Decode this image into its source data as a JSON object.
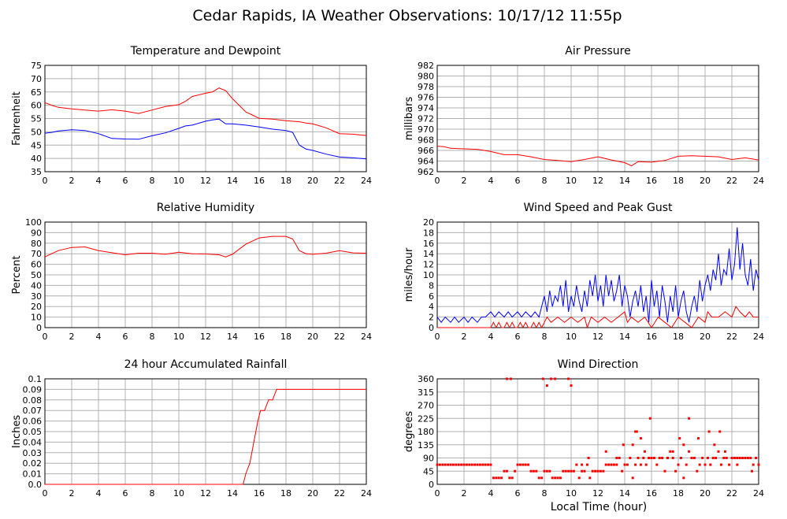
{
  "page_title": "Cedar Rapids, IA Weather Observations: 10/17/12 11:55p",
  "x_axis_label": "Local Time (hour)",
  "colors": {
    "red": "#ff0000",
    "blue": "#0000ff",
    "grid": "#b0b0b0",
    "frame": "#000000"
  },
  "chart_data": [
    {
      "id": "temp",
      "type": "line",
      "title": "Temperature and Dewpoint",
      "ylabel": "Fahrenheit",
      "xlim": [
        0,
        24
      ],
      "ylim": [
        35,
        75
      ],
      "xticks": [
        0,
        2,
        4,
        6,
        8,
        10,
        12,
        14,
        16,
        18,
        20,
        22,
        24
      ],
      "yticks": [
        35,
        40,
        45,
        50,
        55,
        60,
        65,
        70,
        75
      ],
      "grid": true,
      "series": [
        {
          "color": "#ff0000",
          "x": [
            0,
            0.5,
            1,
            2,
            3,
            4,
            5,
            6,
            7,
            8,
            9,
            10,
            10.5,
            11,
            12,
            12.5,
            13,
            13.5,
            14,
            15,
            16,
            17,
            18,
            19,
            19.5,
            20,
            21,
            22,
            23,
            24
          ],
          "y": [
            61,
            60,
            59.2,
            58.6,
            58.2,
            57.8,
            58.3,
            57.8,
            56.9,
            58.2,
            59.5,
            60.2,
            61.5,
            63.3,
            64.5,
            65,
            66.5,
            65.5,
            62.5,
            57.5,
            55.1,
            54.8,
            54.2,
            53.8,
            53.3,
            53,
            51.5,
            49.3,
            49.1,
            48.6
          ]
        },
        {
          "color": "#0000ff",
          "x": [
            0,
            0.5,
            1,
            2,
            3,
            4,
            5,
            6,
            7,
            8,
            9,
            10,
            10.5,
            11,
            12,
            12.5,
            13,
            13.5,
            14,
            15,
            16,
            17,
            18,
            18.5,
            19,
            19.5,
            20,
            21,
            22,
            23,
            24
          ],
          "y": [
            49.5,
            49.8,
            50.3,
            50.8,
            50.5,
            49.3,
            47.5,
            47.3,
            47.2,
            48.5,
            49.6,
            51.3,
            52.2,
            52.5,
            54,
            54.5,
            54.8,
            53,
            53,
            52.5,
            51.8,
            51,
            50.5,
            49.8,
            45,
            43.5,
            43,
            41.6,
            40.5,
            40.2,
            39.8
          ]
        }
      ]
    },
    {
      "id": "pres",
      "type": "line",
      "title": "Air Pressure",
      "ylabel": "millibars",
      "xlim": [
        0,
        24
      ],
      "ylim": [
        962,
        982
      ],
      "xticks": [
        0,
        2,
        4,
        6,
        8,
        10,
        12,
        14,
        16,
        18,
        20,
        22,
        24
      ],
      "yticks": [
        962,
        964,
        966,
        968,
        970,
        972,
        974,
        976,
        978,
        980,
        982
      ],
      "grid": true,
      "series": [
        {
          "color": "#ff0000",
          "x": [
            0,
            0.5,
            1,
            2,
            3,
            4,
            5,
            6,
            7,
            8,
            9,
            10,
            11,
            12,
            13,
            14,
            14.5,
            15,
            16,
            17,
            18,
            19,
            20,
            21,
            22,
            23,
            24
          ],
          "y": [
            966.8,
            966.7,
            966.4,
            966.3,
            966.2,
            965.8,
            965.2,
            965.2,
            964.8,
            964.3,
            964.1,
            963.9,
            964.3,
            964.8,
            964.2,
            963.7,
            963.1,
            963.9,
            963.8,
            964.1,
            964.9,
            965,
            964.9,
            964.8,
            964.3,
            964.6,
            964.2
          ]
        }
      ]
    },
    {
      "id": "rh",
      "type": "line",
      "title": "Relative Humidity",
      "ylabel": "Percent",
      "xlim": [
        0,
        24
      ],
      "ylim": [
        0,
        100
      ],
      "xticks": [
        0,
        2,
        4,
        6,
        8,
        10,
        12,
        14,
        16,
        18,
        20,
        22,
        24
      ],
      "yticks": [
        0,
        10,
        20,
        30,
        40,
        50,
        60,
        70,
        80,
        90,
        100
      ],
      "grid": true,
      "series": [
        {
          "color": "#ff0000",
          "x": [
            0,
            0.5,
            1,
            2,
            3,
            4,
            5,
            6,
            7,
            8,
            9,
            10,
            11,
            12,
            13,
            13.5,
            14,
            15,
            15.5,
            16,
            17,
            18,
            18.5,
            19,
            19.5,
            20,
            21,
            22,
            23,
            24
          ],
          "y": [
            67,
            70,
            73,
            76,
            76.5,
            73,
            71,
            69,
            70.5,
            70.5,
            69.5,
            71.5,
            70,
            69.8,
            69,
            67,
            69.5,
            79,
            82,
            85,
            86.5,
            86.5,
            84,
            73,
            70,
            69.5,
            70.5,
            73,
            70.8,
            70.5
          ]
        }
      ]
    },
    {
      "id": "wind",
      "type": "line",
      "title": "Wind Speed and Peak Gust",
      "ylabel": "miles/hour",
      "xlim": [
        0,
        24
      ],
      "ylim": [
        0,
        20
      ],
      "xticks": [
        0,
        2,
        4,
        6,
        8,
        10,
        12,
        14,
        16,
        18,
        20,
        22,
        24
      ],
      "yticks": [
        0,
        2,
        4,
        6,
        8,
        10,
        12,
        14,
        16,
        18,
        20
      ],
      "grid": true,
      "series": [
        {
          "color": "#0000ff",
          "x": [
            0,
            0.3,
            0.6,
            1,
            1.3,
            1.6,
            2,
            2.3,
            2.6,
            3,
            3.3,
            3.6,
            4,
            4.3,
            4.6,
            5,
            5.3,
            5.6,
            6,
            6.3,
            6.6,
            7,
            7.3,
            7.6,
            8,
            8.2,
            8.4,
            8.6,
            8.8,
            9,
            9.2,
            9.4,
            9.6,
            9.8,
            10,
            10.2,
            10.4,
            10.6,
            10.8,
            11,
            11.2,
            11.4,
            11.6,
            11.8,
            12,
            12.2,
            12.4,
            12.6,
            12.8,
            13,
            13.2,
            13.4,
            13.6,
            13.8,
            14,
            14.2,
            14.4,
            14.6,
            14.8,
            15,
            15.2,
            15.4,
            15.6,
            15.8,
            16,
            16.2,
            16.4,
            16.6,
            16.8,
            17,
            17.2,
            17.4,
            17.6,
            17.8,
            18,
            18.2,
            18.4,
            18.6,
            18.8,
            19,
            19.2,
            19.4,
            19.6,
            19.8,
            20,
            20.2,
            20.4,
            20.6,
            20.8,
            21,
            21.2,
            21.4,
            21.6,
            21.8,
            22,
            22.2,
            22.4,
            22.6,
            22.8,
            23,
            23.2,
            23.4,
            23.6,
            23.8,
            24
          ],
          "y": [
            2,
            1,
            2,
            1,
            2,
            1,
            2,
            1,
            2,
            1,
            2,
            2,
            3,
            2,
            3,
            2,
            3,
            2,
            3,
            2,
            3,
            2,
            3,
            2,
            6,
            3,
            7,
            4,
            6,
            5,
            8,
            4,
            9,
            3,
            6,
            4,
            8,
            5,
            3,
            7,
            4,
            9,
            6,
            10,
            5,
            8,
            4,
            10,
            6,
            9,
            5,
            7,
            10,
            4,
            8,
            6,
            2,
            5,
            7,
            4,
            8,
            3,
            6,
            1,
            9,
            4,
            7,
            2,
            8,
            5,
            1,
            6,
            3,
            8,
            2,
            5,
            7,
            3,
            1,
            4,
            6,
            3,
            9,
            5,
            8,
            10,
            7,
            11,
            9,
            14,
            8,
            11,
            10,
            15,
            9,
            12,
            19,
            11,
            16,
            10,
            8,
            13,
            7,
            11,
            9
          ]
        },
        {
          "color": "#ff0000",
          "x": [
            0,
            4,
            4.2,
            4.4,
            4.6,
            4.8,
            5,
            5.2,
            5.4,
            5.6,
            5.8,
            6,
            6.2,
            6.4,
            6.6,
            6.8,
            7,
            7.2,
            7.4,
            7.6,
            7.8,
            8,
            8.2,
            8.5,
            9,
            9.5,
            10,
            10.5,
            11,
            11.2,
            11.5,
            12,
            12.5,
            13,
            13.5,
            14,
            14.2,
            14.5,
            15,
            15.5,
            16,
            16.5,
            17,
            17.5,
            18,
            18.5,
            19,
            19.5,
            20,
            20.2,
            20.5,
            21,
            21.5,
            22,
            22.3,
            22.6,
            23,
            23.3,
            23.6,
            24
          ],
          "y": [
            0,
            0,
            1,
            0,
            1,
            0,
            0,
            1,
            0,
            1,
            0,
            0,
            1,
            0,
            1,
            0,
            0,
            1,
            0,
            1,
            0,
            1,
            2,
            1,
            2,
            1,
            2,
            1,
            2,
            0,
            2,
            1,
            2,
            1,
            2,
            3,
            1,
            2,
            1,
            2,
            0,
            2,
            1,
            0,
            2,
            1,
            0,
            2,
            1,
            3,
            2,
            2,
            3,
            2,
            4,
            3,
            2,
            3,
            2,
            2
          ]
        }
      ]
    },
    {
      "id": "rain",
      "type": "line",
      "title": "24 hour Accumulated Rainfall",
      "ylabel": "Inches",
      "xlim": [
        0,
        24
      ],
      "ylim": [
        0,
        0.1
      ],
      "xticks": [
        0,
        2,
        4,
        6,
        8,
        10,
        12,
        14,
        16,
        18,
        20,
        22,
        24
      ],
      "yticks": [
        "0.0",
        "0.01",
        "0.02",
        "0.03",
        "0.04",
        "0.05",
        "0.06",
        "0.07",
        "0.08",
        "0.09",
        "0.1"
      ],
      "grid": true,
      "series": [
        {
          "color": "#ff0000",
          "x": [
            0,
            14.8,
            15.0,
            15.3,
            15.6,
            15.9,
            16.1,
            16.4,
            16.7,
            17.0,
            17.3,
            17.5,
            24
          ],
          "y": [
            0,
            0,
            0.01,
            0.02,
            0.04,
            0.06,
            0.07,
            0.07,
            0.08,
            0.08,
            0.09,
            0.09,
            0.09
          ]
        }
      ]
    },
    {
      "id": "dir",
      "type": "scatter",
      "title": "Wind Direction",
      "ylabel": "degrees",
      "xlim": [
        0,
        24
      ],
      "ylim": [
        0,
        360
      ],
      "xticks": [
        0,
        2,
        4,
        6,
        8,
        10,
        12,
        14,
        16,
        18,
        20,
        22,
        24
      ],
      "yticks": [
        0,
        45,
        90,
        135,
        180,
        225,
        270,
        315,
        360
      ],
      "grid": true,
      "series": [
        {
          "color": "#ff0000",
          "x": [
            0,
            0.2,
            0.4,
            0.6,
            0.8,
            1,
            1.2,
            1.4,
            1.6,
            1.8,
            2,
            2.2,
            2.4,
            2.6,
            2.8,
            3,
            3.2,
            3.4,
            3.6,
            3.8,
            4,
            4.2,
            4.4,
            4.6,
            4.8,
            5,
            5.2,
            5.4,
            5.6,
            5.8,
            6,
            6.2,
            6.4,
            6.6,
            6.8,
            7,
            7.2,
            7.4,
            7.6,
            7.8,
            8,
            8.2,
            8.4,
            8.6,
            8.8,
            9,
            9.2,
            9.4,
            9.6,
            9.8,
            10,
            10.2,
            10.4,
            10.6,
            10.8,
            11,
            11.2,
            11.4,
            11.6,
            11.8,
            12,
            12.2,
            12.4,
            12.6,
            12.8,
            13,
            13.2,
            13.4,
            13.6,
            13.8,
            14,
            14.2,
            14.4,
            14.6,
            14.8,
            15,
            15.2,
            15.4,
            15.6,
            15.8,
            16,
            16.2,
            16.4,
            16.6,
            16.8,
            17,
            17.2,
            17.4,
            17.6,
            17.8,
            18,
            18.2,
            18.4,
            18.6,
            18.8,
            19,
            19.2,
            19.4,
            19.6,
            19.8,
            20,
            20.2,
            20.4,
            20.6,
            20.8,
            21,
            21.2,
            21.4,
            21.6,
            21.8,
            22,
            22.2,
            22.4,
            22.6,
            22.8,
            23,
            23.2,
            23.4,
            23.6,
            23.8,
            24,
            5.2,
            5.5,
            7.9,
            8.2,
            8.5,
            8.8,
            9.8,
            10.0,
            14.6,
            14.8,
            15.5,
            15.9,
            16.0,
            18.1,
            18.8,
            20.3,
            21.1,
            21.5,
            14.9,
            15.2,
            10.8,
            11.3,
            13.4,
            13.9,
            12.6,
            17.2,
            17.6,
            18.4,
            19.5,
            20.7,
            22.4,
            23.5
          ],
          "y": [
            67,
            67,
            67,
            67,
            67,
            67,
            67,
            67,
            67,
            67,
            67,
            67,
            67,
            67,
            67,
            67,
            67,
            67,
            67,
            67,
            67,
            22,
            22,
            22,
            22,
            45,
            45,
            22,
            22,
            45,
            67,
            67,
            67,
            67,
            67,
            45,
            45,
            45,
            22,
            22,
            45,
            45,
            45,
            22,
            22,
            22,
            22,
            45,
            45,
            45,
            45,
            45,
            67,
            22,
            45,
            45,
            67,
            22,
            45,
            45,
            45,
            45,
            45,
            67,
            67,
            67,
            67,
            67,
            90,
            45,
            67,
            67,
            90,
            22,
            67,
            90,
            67,
            90,
            67,
            90,
            90,
            90,
            67,
            90,
            90,
            45,
            90,
            112,
            90,
            45,
            67,
            90,
            22,
            67,
            112,
            90,
            90,
            45,
            67,
            90,
            67,
            90,
            67,
            90,
            90,
            112,
            67,
            90,
            90,
            67,
            90,
            90,
            67,
            90,
            90,
            90,
            90,
            90,
            67,
            90,
            67,
            360,
            360,
            360,
            337,
            360,
            360,
            360,
            337,
            135,
            180,
            112,
            225,
            90,
            157,
            225,
            180,
            180,
            112,
            180,
            157,
            67,
            90,
            90,
            135,
            112,
            90,
            112,
            135,
            157,
            135,
            90,
            45
          ]
        }
      ]
    }
  ]
}
